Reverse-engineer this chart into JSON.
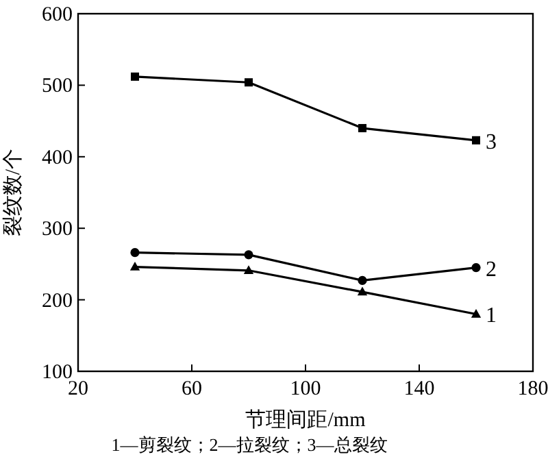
{
  "chart_data": {
    "type": "line",
    "xlabel": "节理间距/mm",
    "ylabel": "裂纹数/个",
    "x": [
      40,
      80,
      120,
      160
    ],
    "series": [
      {
        "name": "1",
        "color": "#000000",
        "marker": "triangle",
        "values": [
          246,
          241,
          211,
          180
        ]
      },
      {
        "name": "2",
        "color": "#000000",
        "marker": "circle",
        "values": [
          266,
          263,
          227,
          245
        ]
      },
      {
        "name": "3",
        "color": "#000000",
        "marker": "square",
        "values": [
          512,
          504,
          440,
          423
        ]
      }
    ],
    "xlim": [
      20,
      180
    ],
    "xticks": [
      20,
      60,
      100,
      140,
      180
    ],
    "ylim": [
      100,
      600
    ],
    "yticks": [
      100,
      200,
      300,
      400,
      500,
      600
    ],
    "grid": false,
    "line_style": "solid",
    "annotations": [
      "1—剪裂纹；2—拉裂纹；3—总裂纹"
    ]
  }
}
